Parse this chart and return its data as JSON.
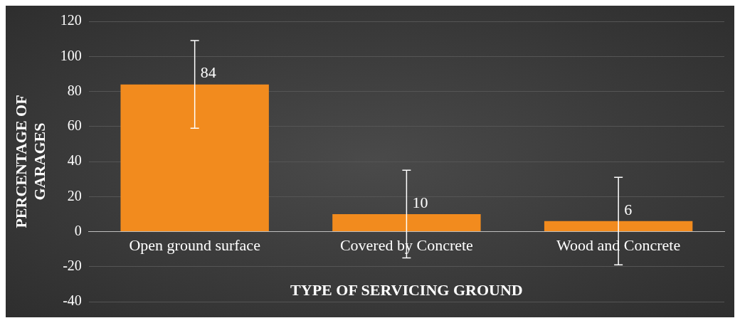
{
  "chart_data": {
    "type": "bar",
    "xlabel": "TYPE OF SERVICING GROUND",
    "ylabel": "PERCENTAGE OF GARAGES",
    "categories": [
      "Open ground surface",
      "Covered by Concrete",
      "Wood and Concrete"
    ],
    "values": [
      84,
      10,
      6
    ],
    "color": "#f28b1e",
    "errors": [
      25,
      25,
      25
    ],
    "ylim": [
      -40,
      120
    ],
    "yticks": [
      -40,
      -20,
      0,
      20,
      40,
      60,
      80,
      100,
      120
    ],
    "grid": "y",
    "data_labels": true,
    "legend": false
  }
}
